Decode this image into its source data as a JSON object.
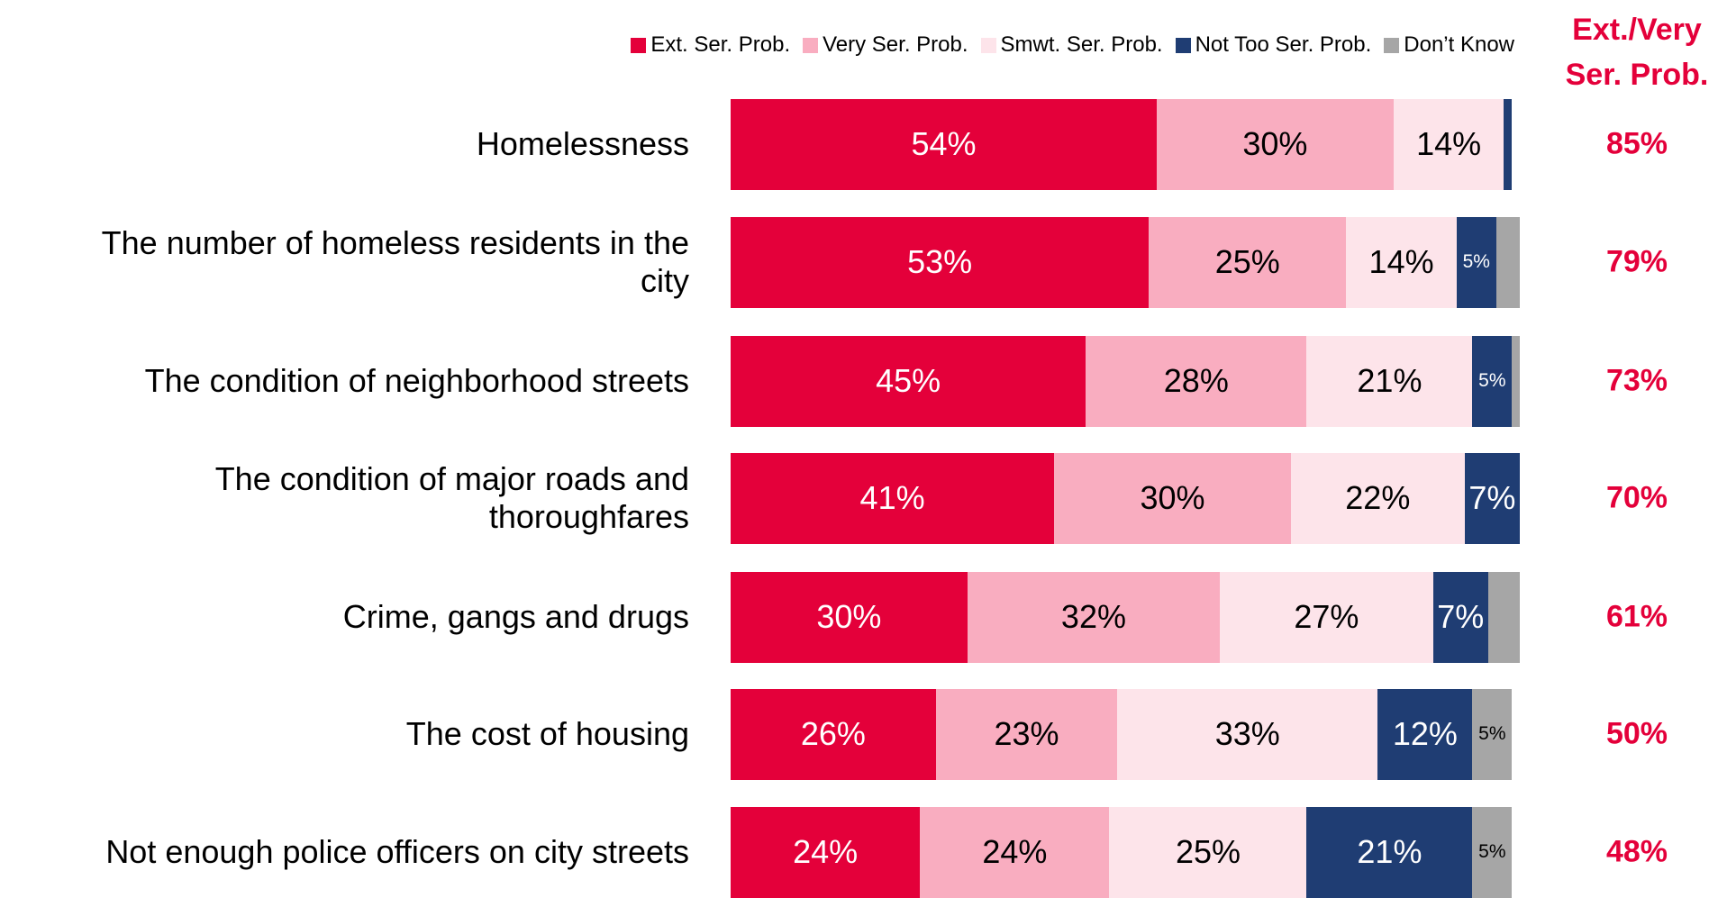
{
  "chart_data": {
    "type": "stacked-bar-horizontal",
    "categories": [
      "Homelessness",
      "The number of homeless residents in the city",
      "The condition of neighborhood streets",
      "The condition of major roads and thoroughfares",
      "Crime, gangs and drugs",
      "The cost of housing",
      "Not enough police officers on city streets"
    ],
    "xlim": [
      0,
      100
    ],
    "legend": "top",
    "series": [
      {
        "name": "Ext. Ser. Prob.",
        "color": "#e4003a",
        "values": [
          54,
          53,
          45,
          41,
          30,
          26,
          24
        ],
        "value_labels": [
          "54%",
          "53%",
          "45%",
          "41%",
          "30%",
          "26%",
          "24%"
        ]
      },
      {
        "name": "Very Ser. Prob.",
        "color": "#f9adc0",
        "values": [
          30,
          25,
          28,
          30,
          32,
          23,
          24
        ],
        "value_labels": [
          "30%",
          "25%",
          "28%",
          "30%",
          "32%",
          "23%",
          "24%"
        ]
      },
      {
        "name": "Smwt. Ser. Prob.",
        "color": "#fde4ea",
        "values": [
          14,
          14,
          21,
          22,
          27,
          33,
          25
        ],
        "value_labels": [
          "14%",
          "14%",
          "21%",
          "22%",
          "27%",
          "33%",
          "25%"
        ]
      },
      {
        "name": "Not Too Ser. Prob.",
        "color": "#1f3d73",
        "values": [
          1,
          5,
          5,
          7,
          7,
          12,
          21
        ],
        "value_labels": [
          null,
          "5%",
          "5%",
          "7%",
          "7%",
          "12%",
          "21%"
        ]
      },
      {
        "name": "Don’t Know",
        "color": "#a6a6a6",
        "values": [
          0,
          3,
          1,
          0,
          4,
          5,
          5
        ],
        "value_labels": [
          null,
          null,
          null,
          null,
          null,
          "5%",
          "5%"
        ]
      }
    ],
    "net": {
      "title": "Ext./Very Ser. Prob.",
      "color": "#e4003a",
      "values": [
        85,
        79,
        73,
        70,
        61,
        50,
        48
      ],
      "value_labels": [
        "85%",
        "79%",
        "73%",
        "70%",
        "61%",
        "50%",
        "48%"
      ]
    }
  }
}
